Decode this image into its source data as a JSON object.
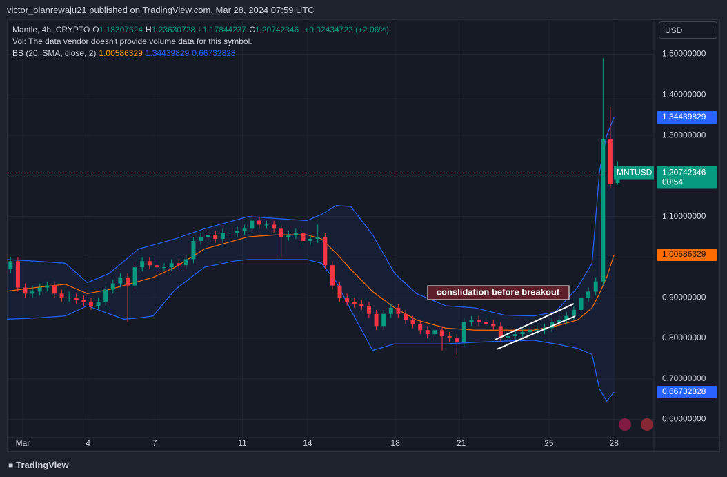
{
  "chart_data": {
    "type": "candlestick",
    "published": "victor_olanrewaju21 published on TradingView.com, Mar 28, 2024 07:59 UTC",
    "title": "Mantle, 4h, CRYPTO",
    "ohlc": [
      {
        "key": "O",
        "value": "1.18307624"
      },
      {
        "key": "H",
        "value": "1.23630728"
      },
      {
        "key": "L",
        "value": "1.17844237"
      },
      {
        "key": "C",
        "value": "1.20742346"
      }
    ],
    "change": "+0.02434722 (+2.06%)",
    "vol_note": "Vol: The data vendor doesn't provide volume data for this symbol.",
    "bb_label": "BB (20, SMA, close, 2)",
    "bb_values": [
      "1.00586329",
      "1.34439829",
      "0.66732828"
    ],
    "currency": "USD",
    "symbol": "MNTUSD",
    "countdown": "00:54",
    "annotation": "conslidation before breakout",
    "brand": "TradingView",
    "up_color": "#089981",
    "down_color": "#f23645",
    "ylim": [
      0.555,
      1.586
    ],
    "yticks": [
      {
        "value": 1.5,
        "label": "1.50000000"
      },
      {
        "value": 1.4,
        "label": "1.40000000"
      },
      {
        "value": 1.3,
        "label": "1.30000000"
      },
      {
        "value": 1.2,
        "label": "1.20000000"
      },
      {
        "value": 1.1,
        "label": "1.10000000"
      },
      {
        "value": 1.0,
        "label": "1.00000000"
      },
      {
        "value": 0.9,
        "label": "0.90000000"
      },
      {
        "value": 0.8,
        "label": "0.80000000"
      },
      {
        "value": 0.7,
        "label": "0.70000000"
      },
      {
        "value": 0.6,
        "label": "0.60000000"
      }
    ],
    "xlim": [
      0,
      88.4
    ],
    "xticks": [
      {
        "value": 2.17,
        "label": "Mar"
      },
      {
        "value": 11.1,
        "label": "4"
      },
      {
        "value": 20.2,
        "label": "7"
      },
      {
        "value": 32.2,
        "label": "11"
      },
      {
        "value": 41.1,
        "label": "14"
      },
      {
        "value": 53.1,
        "label": "18"
      },
      {
        "value": 62.1,
        "label": "21"
      },
      {
        "value": 74.1,
        "label": "25"
      },
      {
        "value": 83,
        "label": "28"
      }
    ],
    "open": [
      0.97,
      0.99,
      0.925,
      0.91,
      0.915,
      0.925,
      0.93,
      0.91,
      0.9,
      0.9,
      0.895,
      0.89,
      0.88,
      0.89,
      0.92,
      0.935,
      0.95,
      0.93,
      0.975,
      0.99,
      0.98,
      0.975,
      0.975,
      0.985,
      0.98,
      0.995,
      1.04,
      1.05,
      1.055,
      1.045,
      1.06,
      1.06,
      1.065,
      1.07,
      1.09,
      1.08,
      1.08,
      1.07,
      1.05,
      1.055,
      1.06,
      1.04,
      1.045,
      1.05,
      0.98,
      0.93,
      0.9,
      0.89,
      0.885,
      0.88,
      0.86,
      0.83,
      0.86,
      0.875,
      0.86,
      0.845,
      0.835,
      0.82,
      0.81,
      0.82,
      0.805,
      0.8,
      0.79,
      0.84,
      0.845,
      0.84,
      0.835,
      0.83,
      0.8,
      0.805,
      0.81,
      0.815,
      0.82,
      0.82,
      0.825,
      0.84,
      0.845,
      0.855,
      0.87,
      0.9,
      0.915,
      0.94,
      1.29,
      1.18307624
    ],
    "high": [
      1.0,
      1.0,
      0.935,
      0.93,
      0.935,
      0.94,
      0.94,
      0.92,
      0.915,
      0.91,
      0.905,
      0.9,
      0.9,
      0.93,
      0.945,
      0.96,
      0.96,
      0.985,
      1.0,
      1.0,
      0.99,
      0.985,
      0.995,
      0.995,
      1.005,
      1.05,
      1.06,
      1.065,
      1.065,
      1.07,
      1.075,
      1.075,
      1.08,
      1.1,
      1.1,
      1.09,
      1.09,
      1.08,
      1.065,
      1.07,
      1.07,
      1.055,
      1.08,
      1.06,
      0.99,
      0.94,
      0.91,
      0.9,
      0.895,
      0.89,
      0.87,
      0.87,
      0.885,
      0.885,
      0.87,
      0.855,
      0.845,
      0.83,
      0.83,
      0.83,
      0.815,
      0.81,
      0.85,
      0.855,
      0.855,
      0.85,
      0.845,
      0.84,
      0.815,
      0.82,
      0.825,
      0.83,
      0.83,
      0.835,
      0.85,
      0.855,
      0.865,
      0.88,
      0.91,
      0.925,
      0.95,
      1.49,
      1.37,
      1.23630728
    ],
    "low": [
      0.96,
      0.915,
      0.9,
      0.9,
      0.905,
      0.915,
      0.9,
      0.89,
      0.89,
      0.885,
      0.88,
      0.87,
      0.87,
      0.88,
      0.91,
      0.925,
      0.84,
      0.92,
      0.965,
      0.97,
      0.965,
      0.965,
      0.965,
      0.97,
      0.97,
      0.985,
      1.03,
      1.04,
      1.035,
      1.035,
      1.05,
      1.05,
      1.055,
      1.06,
      1.07,
      1.07,
      1.06,
      1.0,
      1.04,
      1.045,
      1.03,
      1.03,
      1.035,
      0.97,
      0.92,
      0.89,
      0.88,
      0.875,
      0.87,
      0.85,
      0.82,
      0.82,
      0.85,
      0.85,
      0.835,
      0.825,
      0.81,
      0.8,
      0.8,
      0.77,
      0.79,
      0.76,
      0.78,
      0.83,
      0.83,
      0.825,
      0.82,
      0.79,
      0.79,
      0.795,
      0.8,
      0.805,
      0.81,
      0.81,
      0.815,
      0.83,
      0.835,
      0.845,
      0.86,
      0.89,
      0.905,
      0.93,
      1.17,
      1.17844237
    ],
    "close": [
      0.99,
      0.925,
      0.91,
      0.915,
      0.925,
      0.93,
      0.91,
      0.9,
      0.9,
      0.895,
      0.89,
      0.88,
      0.89,
      0.92,
      0.935,
      0.95,
      0.93,
      0.975,
      0.99,
      0.98,
      0.975,
      0.975,
      0.985,
      0.98,
      0.995,
      1.04,
      1.05,
      1.055,
      1.045,
      1.06,
      1.06,
      1.065,
      1.07,
      1.09,
      1.08,
      1.08,
      1.07,
      1.05,
      1.055,
      1.06,
      1.04,
      1.045,
      1.05,
      0.98,
      0.93,
      0.9,
      0.89,
      0.885,
      0.88,
      0.86,
      0.83,
      0.86,
      0.875,
      0.86,
      0.845,
      0.835,
      0.82,
      0.81,
      0.82,
      0.805,
      0.8,
      0.79,
      0.84,
      0.845,
      0.84,
      0.835,
      0.83,
      0.8,
      0.805,
      0.81,
      0.815,
      0.82,
      0.82,
      0.825,
      0.84,
      0.845,
      0.855,
      0.87,
      0.9,
      0.915,
      0.94,
      1.29,
      1.18,
      1.20742346
    ],
    "band_x": [
      0,
      4,
      8,
      11,
      14,
      16,
      18,
      20,
      23,
      27,
      31,
      33,
      37,
      41,
      43,
      45,
      47,
      50,
      53,
      56,
      60,
      64,
      68,
      72,
      75,
      78,
      80,
      81,
      82,
      83
    ],
    "bands": [
      {
        "color": "#ff6d00",
        "values": [
          0.916,
          0.925,
          0.933,
          0.91,
          0.92,
          0.93,
          0.94,
          0.95,
          0.975,
          1.02,
          1.04,
          1.05,
          1.055,
          1.055,
          1.045,
          1.01,
          0.97,
          0.915,
          0.875,
          0.845,
          0.825,
          0.82,
          0.82,
          0.82,
          0.83,
          0.845,
          0.875,
          0.91,
          0.95,
          1.00586329
        ]
      },
      {
        "color": "#2962ff",
        "values": [
          0.994,
          0.99,
          0.985,
          0.937,
          0.96,
          0.99,
          1.02,
          1.03,
          1.045,
          1.07,
          1.09,
          1.1,
          1.095,
          1.09,
          1.105,
          1.127,
          1.125,
          1.055,
          0.96,
          0.91,
          0.88,
          0.875,
          0.857,
          0.855,
          0.865,
          0.925,
          0.985,
          1.21,
          1.3,
          1.34439829
        ]
      },
      {
        "color": "#2962ff",
        "values": [
          0.847,
          0.85,
          0.855,
          0.88,
          0.86,
          0.847,
          0.85,
          0.855,
          0.92,
          0.975,
          0.99,
          0.994,
          0.994,
          0.994,
          0.985,
          0.94,
          0.87,
          0.77,
          0.786,
          0.786,
          0.786,
          0.79,
          0.793,
          0.795,
          0.786,
          0.775,
          0.76,
          0.675,
          0.645,
          0.66732828
        ]
      }
    ]
  }
}
